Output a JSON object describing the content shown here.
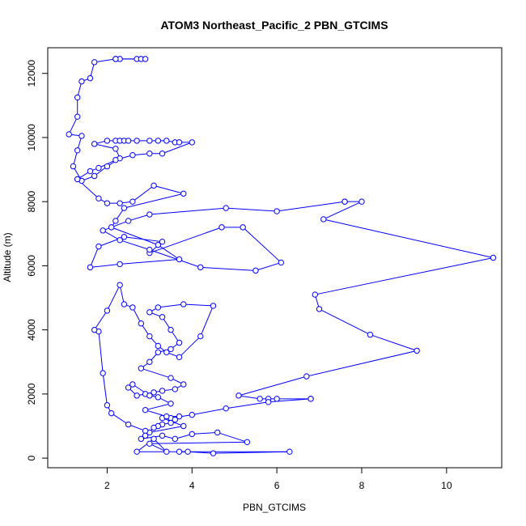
{
  "chart_data": {
    "type": "line",
    "title": "ATOM3 Northeast_Pacific_2 PBN_GTCIMS",
    "xlabel": "PBN_GTCIMS",
    "ylabel": "Altitude (m)",
    "xlim": [
      0.6,
      11.3
    ],
    "ylim": [
      -300,
      12800
    ],
    "xticks": [
      2,
      4,
      6,
      8,
      10
    ],
    "xtick_labels": [
      "2",
      "4",
      "6",
      "8",
      "10"
    ],
    "yticks": [
      0,
      2000,
      4000,
      6000,
      8000,
      10000,
      12000
    ],
    "ytick_labels": [
      "0",
      "2000",
      "4000",
      "6000",
      "8000",
      "10000",
      "12000"
    ],
    "grid": false,
    "marker": "open-circle",
    "series": [
      {
        "color": "#0000ff",
        "x": [
          2.2,
          2.3,
          2.7,
          2.8,
          2.9,
          2.2,
          1.7,
          1.6,
          1.4,
          1.3,
          1.3,
          1.1,
          1.4,
          1.3,
          1.2,
          1.4,
          1.7,
          2.0,
          2.3,
          2.2,
          1.7,
          2.0,
          2.2,
          2.3,
          2.4,
          2.5,
          2.7,
          3.0,
          3.2,
          3.4,
          3.6,
          3.7,
          4.0,
          3.3,
          3.0,
          2.6,
          2.2,
          1.8,
          1.6,
          1.3,
          1.3,
          1.8,
          2.0,
          2.3,
          2.6,
          3.1,
          3.8,
          2.4,
          2.2,
          2.1,
          3.2,
          3.7,
          2.3,
          1.6,
          1.8,
          2.4,
          3.3,
          3.0,
          4.7,
          5.2,
          6.1,
          5.5,
          4.2,
          3.0,
          2.3,
          1.9,
          2.5,
          3.0,
          4.8,
          6.0,
          7.6,
          7.6,
          8.0,
          7.1,
          11.1,
          6.9,
          7.0,
          8.2,
          9.3,
          6.7,
          5.1,
          5.6,
          5.8,
          6.0,
          6.8,
          6.8,
          5.8,
          4.8,
          4.0,
          3.5,
          3.3,
          3.8,
          3.0,
          2.9,
          2.5,
          2.1,
          2.0,
          1.9,
          1.8,
          1.7,
          2.0,
          2.3,
          2.4,
          2.6,
          2.8,
          3.0,
          3.2,
          3.4,
          3.7,
          4.2,
          4.5,
          3.8,
          3.2,
          3.0,
          3.3,
          3.5,
          3.7,
          3.5,
          3.2,
          3.0,
          2.8,
          3.5,
          3.8,
          3.6,
          3.3,
          3.1,
          2.9,
          2.7,
          2.5,
          2.6,
          3.0,
          3.2,
          3.5,
          2.9,
          3.4,
          3.7,
          3.6,
          3.5,
          3.3,
          3.2,
          3.1,
          2.9,
          2.8,
          3.3,
          3.6,
          4.0,
          4.6,
          5.3,
          3.0,
          3.4,
          3.1,
          2.7,
          3.9,
          4.5,
          6.3,
          3.7
        ],
        "y": [
          12450,
          12450,
          12450,
          12450,
          12450,
          12450,
          12350,
          11850,
          11750,
          11250,
          10650,
          10100,
          10050,
          9600,
          9100,
          8650,
          8800,
          9100,
          9350,
          9650,
          9800,
          9900,
          9900,
          9900,
          9900,
          9900,
          9900,
          9900,
          9900,
          9900,
          9850,
          9850,
          9850,
          9500,
          9500,
          9450,
          9300,
          9050,
          8950,
          8700,
          8700,
          8100,
          7950,
          7950,
          8000,
          8500,
          8250,
          7800,
          7400,
          7200,
          6650,
          6200,
          6050,
          5950,
          6600,
          6900,
          6750,
          6400,
          7200,
          7200,
          6100,
          5850,
          5950,
          6500,
          6800,
          7100,
          7400,
          7600,
          7800,
          7700,
          8000,
          8000,
          8000,
          7450,
          6250,
          5100,
          4650,
          3850,
          3350,
          2550,
          1950,
          1850,
          1850,
          1850,
          1850,
          1850,
          1750,
          1550,
          1350,
          1250,
          1250,
          1000,
          800,
          850,
          1050,
          1400,
          1650,
          2650,
          3950,
          4000,
          4600,
          5400,
          4800,
          4700,
          4200,
          3800,
          3500,
          3300,
          3150,
          3800,
          4750,
          4800,
          4700,
          4550,
          4400,
          4000,
          3600,
          3400,
          3300,
          3000,
          2800,
          2500,
          2300,
          2150,
          2100,
          2050,
          2000,
          1950,
          2200,
          2300,
          1950,
          1900,
          1700,
          1500,
          1300,
          1300,
          1200,
          1100,
          1050,
          1000,
          950,
          700,
          600,
          700,
          600,
          750,
          800,
          500,
          450,
          200,
          600,
          200,
          200,
          150,
          200,
          200
        ]
      }
    ]
  }
}
